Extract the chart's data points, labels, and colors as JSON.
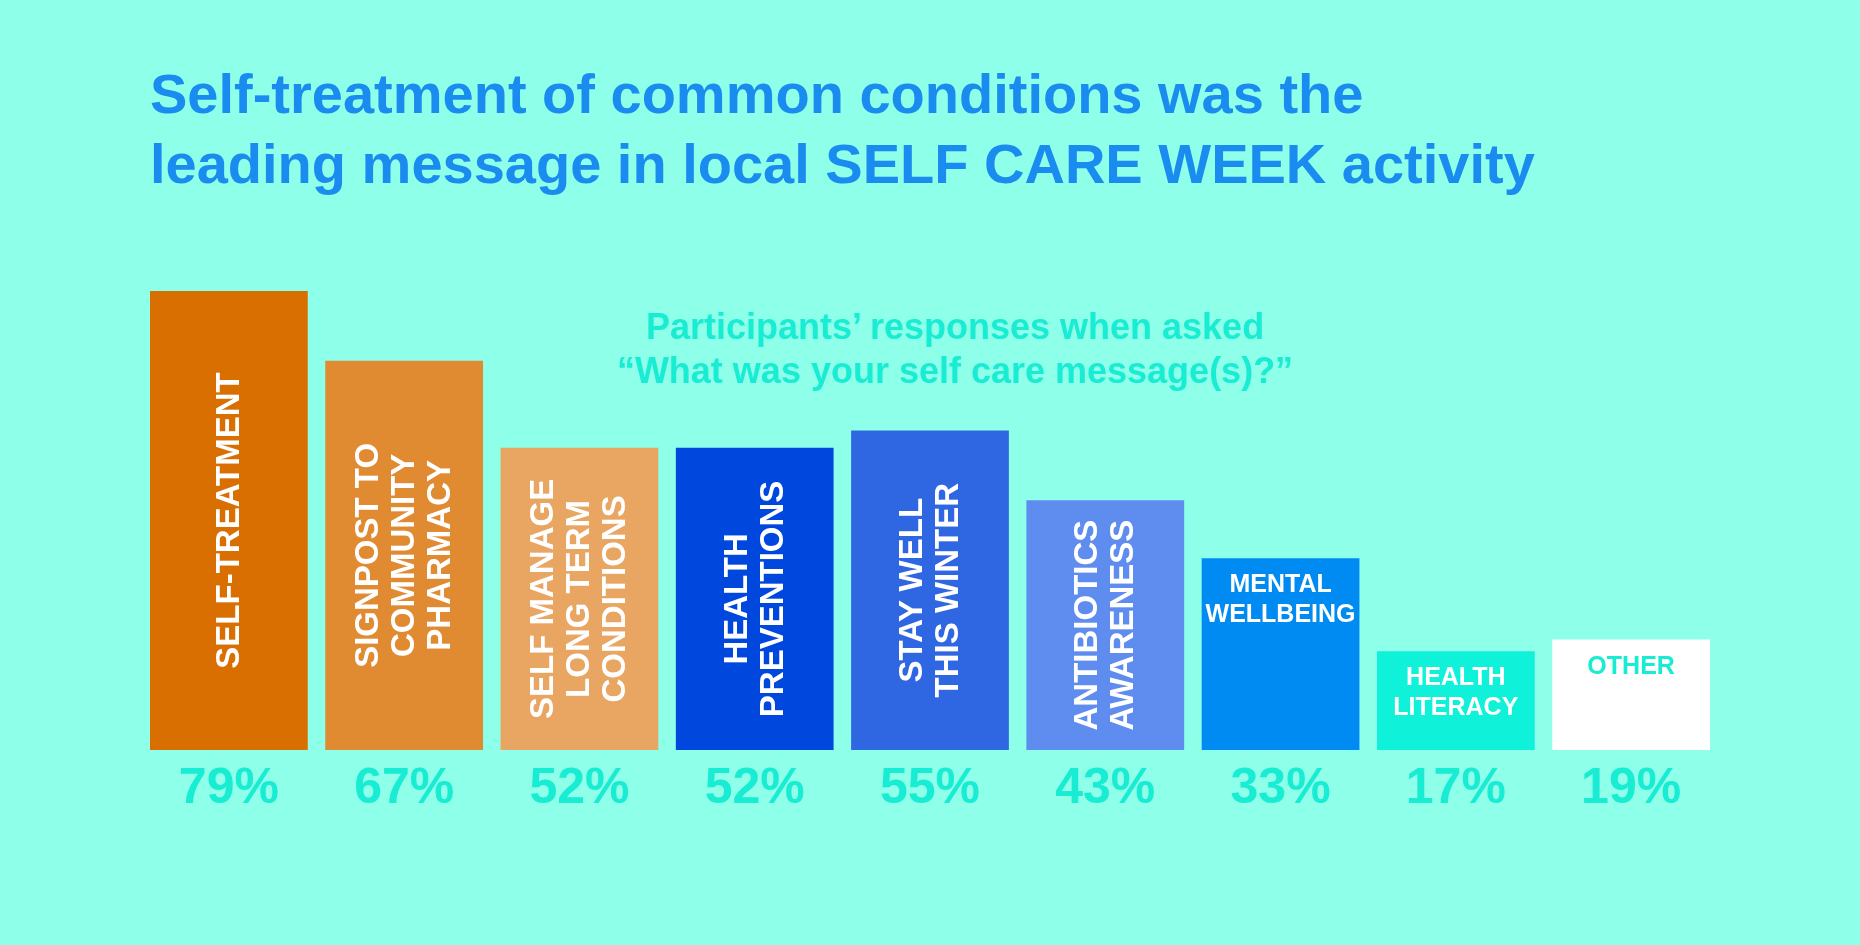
{
  "chart_data": {
    "type": "bar",
    "title": "Self-treatment of common conditions was the\nleading message in local SELF CARE WEEK activity",
    "subtitle": "Participants’ responses when asked\n“What was your self care message(s)?”",
    "categories": [
      "SELF-TREATMENT",
      "SIGNPOST TO\nCOMMUNITY\nPHARMACY",
      "SELF MANAGE\nLONG TERM\nCONDITIONS",
      "HEALTH\nPREVENTIONS",
      "STAY WELL\nTHIS WINTER",
      "ANTIBIOTICS\nAWARENESS",
      "MENTAL\nWELLBEING",
      "HEALTH\nLITERACY",
      "OTHER"
    ],
    "values": [
      79,
      67,
      52,
      52,
      55,
      43,
      33,
      17,
      19
    ],
    "colors": [
      "#d86f00",
      "#e08a32",
      "#e9a562",
      "#0047de",
      "#2f66e2",
      "#5f8def",
      "#008bf2",
      "#0ff2d9",
      "#ffffff"
    ],
    "value_labels": [
      "79%",
      "67%",
      "52%",
      "52%",
      "55%",
      "43%",
      "33%",
      "17%",
      "19%"
    ]
  }
}
